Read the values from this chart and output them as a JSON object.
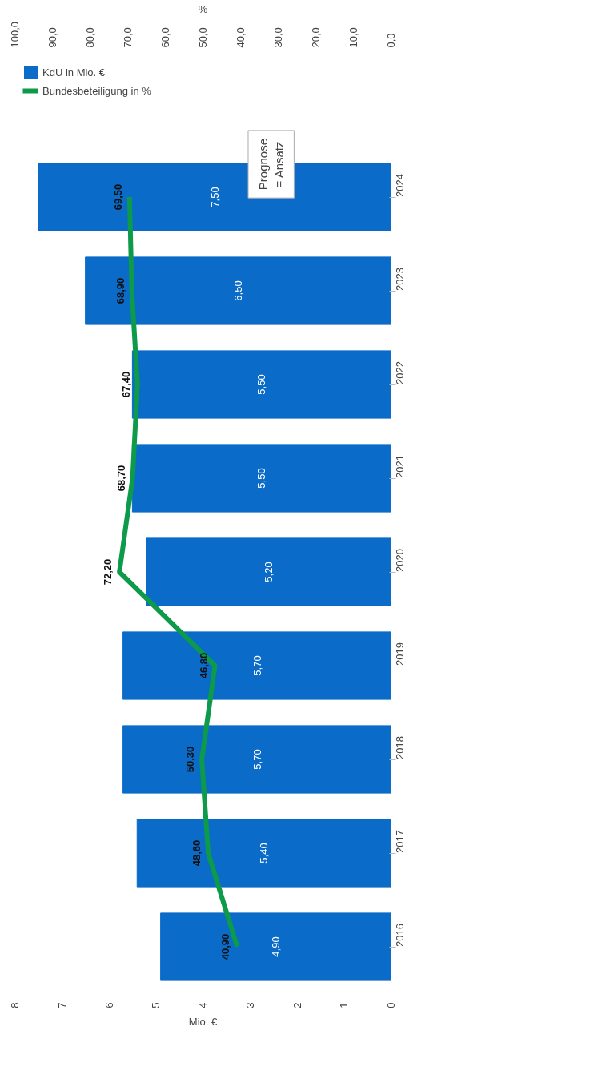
{
  "chart_data": {
    "type": "bar",
    "orientation": "horizontal",
    "categories": [
      null,
      "2024",
      "2023",
      "2022",
      "2021",
      "2020",
      "2019",
      "2018",
      "2017",
      "2016"
    ],
    "xlabel": "Mio. €",
    "x2label": "%",
    "xlim": [
      8,
      0
    ],
    "xticks": [
      0,
      1,
      2,
      3,
      4,
      5,
      6,
      7,
      8
    ],
    "x2lim": [
      100,
      0
    ],
    "x2ticks": [
      {
        "value": 0,
        "label": "0,0"
      },
      {
        "value": 10,
        "label": "10,0"
      },
      {
        "value": 20,
        "label": "20,0"
      },
      {
        "value": 30,
        "label": "30,0"
      },
      {
        "value": 40,
        "label": "40,0"
      },
      {
        "value": 50,
        "label": "50,0"
      },
      {
        "value": 60,
        "label": "60,0"
      },
      {
        "value": 70,
        "label": "70,0"
      },
      {
        "value": 80,
        "label": "80,0"
      },
      {
        "value": 90,
        "label": "90,0"
      },
      {
        "value": 100,
        "label": "100,0"
      }
    ],
    "series": [
      {
        "name": "KdU in Mio. €",
        "type": "bar",
        "color": "#0a6bc8",
        "values": [
          null,
          7.5,
          6.5,
          5.5,
          5.5,
          5.2,
          5.7,
          5.7,
          5.4,
          4.9
        ],
        "value_labels": [
          null,
          "7,50",
          "6,50",
          "5,50",
          "5,50",
          "5,20",
          "5,70",
          "5,70",
          "5,40",
          "4,90"
        ]
      },
      {
        "name": "Bundesbeteiligung in %",
        "type": "line",
        "axis": "x2",
        "color": "#0d9a4a",
        "values": [
          null,
          69.5,
          68.9,
          67.4,
          68.7,
          72.2,
          46.8,
          50.3,
          48.6,
          40.9
        ],
        "value_labels": [
          null,
          "69,50",
          "68,90",
          "67,40",
          "68,70",
          "72,20",
          "46,80",
          "50,30",
          "48,60",
          "40,90"
        ]
      }
    ],
    "annotations": [
      "Prognose\n= Ansatz"
    ],
    "legend": "top left",
    "grid": false,
    "marker": "none",
    "line_style": "solid"
  }
}
